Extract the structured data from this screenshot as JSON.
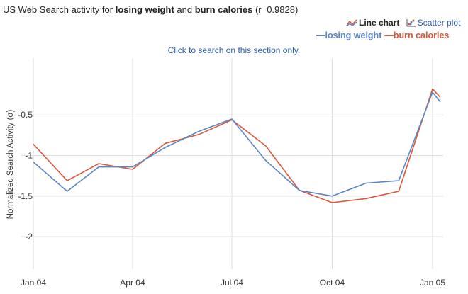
{
  "header": {
    "title_prefix": "US Web Search activity for ",
    "term_a": "losing weight",
    "title_and": " and ",
    "term_b": "burn calories",
    "title_suffix": " (r=0.9828)"
  },
  "view_toggle": {
    "line_label": "Line chart",
    "scatter_label": "Scatter plot",
    "line_icon": "line-chart-icon",
    "scatter_icon": "scatter-plot-icon"
  },
  "legend": {
    "series_a": "—losing weight",
    "series_b": "—burn calories"
  },
  "hint": "Click to search on this section only.",
  "colors": {
    "series_a": "#5a85c8",
    "series_b": "#d9573a",
    "grid": "#dddddd",
    "link": "#2a5db0"
  },
  "chart_data": {
    "type": "line",
    "ylabel": "Normalized Search Activity (σ)",
    "xlabel": "",
    "x": [
      "2004-01-01",
      "2004-02-01",
      "2004-03-01",
      "2004-04-01",
      "2004-05-01",
      "2004-06-01",
      "2004-07-01",
      "2004-08-01",
      "2004-09-01",
      "2004-10-01",
      "2004-11-01",
      "2004-12-01",
      "2005-01-01",
      "2005-01-08"
    ],
    "x_ticks": [
      "Jan 04",
      "Apr 04",
      "Jul 04",
      "Oct 04",
      "Jan 05"
    ],
    "y_ticks": [
      "-0.5",
      "-1",
      "-1.5",
      "-2"
    ],
    "ylim": [
      -2.4,
      0.2
    ],
    "grid": true,
    "legend_position": "top-right",
    "series": [
      {
        "name": "losing weight",
        "values": [
          -1.08,
          -1.44,
          -1.14,
          -1.14,
          -0.9,
          -0.7,
          -0.55,
          -1.06,
          -1.43,
          -1.5,
          -1.34,
          -1.31,
          -0.22,
          -0.34
        ]
      },
      {
        "name": "burn calories",
        "values": [
          -0.86,
          -1.31,
          -1.1,
          -1.17,
          -0.85,
          -0.74,
          -0.56,
          -0.88,
          -1.43,
          -1.58,
          -1.53,
          -1.44,
          -0.18,
          -0.28
        ]
      }
    ]
  }
}
